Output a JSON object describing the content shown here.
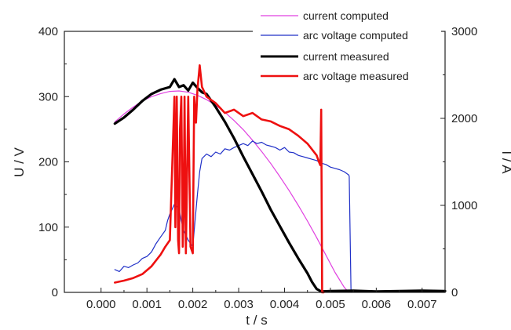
{
  "chart_data": {
    "type": "line",
    "title": "",
    "xlabel": "t / s",
    "ylabel_left": "U / V",
    "ylabel_right": "I / A",
    "xlim": [
      -0.0008,
      0.0075
    ],
    "ylim_left": [
      0,
      400
    ],
    "ylim_right": [
      0,
      3000
    ],
    "xticks": [
      "0.000",
      "0.001",
      "0.002",
      "0.003",
      "0.004",
      "0.005",
      "0.006",
      "0.007"
    ],
    "yticks_left": [
      "0",
      "100",
      "200",
      "300",
      "400"
    ],
    "yticks_right": [
      "0",
      "1000",
      "2000",
      "3000"
    ],
    "grid": false,
    "legend_position": "top-right",
    "series": [
      {
        "name": "current computed",
        "color": "#e040e0",
        "axis": "right",
        "width": 1.2,
        "x": [
          0.0003,
          0.0005,
          0.0007,
          0.0009,
          0.0011,
          0.0013,
          0.0015,
          0.0017,
          0.0019,
          0.0021,
          0.0023,
          0.0025,
          0.0027,
          0.0029,
          0.0031,
          0.0033,
          0.0035,
          0.0037,
          0.0039,
          0.0041,
          0.0043,
          0.0045,
          0.0047,
          0.0049,
          0.0051,
          0.0053,
          0.0054
        ],
        "y": [
          1960,
          2050,
          2130,
          2200,
          2250,
          2285,
          2310,
          2315,
          2300,
          2265,
          2215,
          2150,
          2070,
          1975,
          1870,
          1750,
          1620,
          1480,
          1330,
          1170,
          1000,
          820,
          630,
          430,
          230,
          60,
          0
        ]
      },
      {
        "name": "arc voltage computed",
        "color": "#2030c8",
        "axis": "left",
        "width": 1.2,
        "x": [
          0.0003,
          0.0004,
          0.0005,
          0.0006,
          0.0007,
          0.0008,
          0.0009,
          0.001,
          0.0011,
          0.0012,
          0.0013,
          0.0014,
          0.00145,
          0.0015,
          0.0016,
          0.0017,
          0.00175,
          0.0018,
          0.0019,
          0.002,
          0.00205,
          0.0021,
          0.00215,
          0.0022,
          0.0023,
          0.0024,
          0.0025,
          0.0026,
          0.0027,
          0.0028,
          0.0029,
          0.003,
          0.0031,
          0.0032,
          0.0033,
          0.0034,
          0.0035,
          0.0036,
          0.0037,
          0.0038,
          0.0039,
          0.004,
          0.0041,
          0.0042,
          0.0043,
          0.0044,
          0.0045,
          0.0046,
          0.0047,
          0.0048,
          0.0049,
          0.005,
          0.0051,
          0.0052,
          0.0053,
          0.0054,
          0.00541,
          0.00545
        ],
        "y": [
          35,
          32,
          40,
          38,
          42,
          45,
          52,
          55,
          62,
          75,
          85,
          95,
          110,
          120,
          135,
          128,
          110,
          95,
          80,
          70,
          110,
          150,
          185,
          205,
          212,
          208,
          215,
          212,
          220,
          218,
          222,
          225,
          228,
          225,
          232,
          228,
          230,
          226,
          224,
          222,
          218,
          222,
          215,
          214,
          210,
          208,
          206,
          204,
          202,
          198,
          196,
          192,
          190,
          188,
          185,
          180,
          178,
          0
        ]
      },
      {
        "name": "current measured",
        "color": "#000000",
        "axis": "right",
        "width": 3.2,
        "x": [
          0.0003,
          0.0005,
          0.0007,
          0.0009,
          0.0011,
          0.0013,
          0.0015,
          0.0016,
          0.0017,
          0.0018,
          0.0019,
          0.002,
          0.0021,
          0.0022,
          0.0023,
          0.0025,
          0.0027,
          0.0029,
          0.0031,
          0.0033,
          0.0035,
          0.0037,
          0.0039,
          0.0041,
          0.0043,
          0.0045,
          0.0046,
          0.0047,
          0.0048,
          0.005,
          0.0055,
          0.006,
          0.0065,
          0.007,
          0.0075
        ],
        "y": [
          1940,
          2010,
          2100,
          2200,
          2280,
          2330,
          2360,
          2450,
          2360,
          2380,
          2320,
          2410,
          2350,
          2300,
          2280,
          2130,
          1960,
          1770,
          1560,
          1360,
          1160,
          950,
          760,
          570,
          390,
          220,
          120,
          40,
          10,
          15,
          20,
          10,
          15,
          20,
          15
        ]
      },
      {
        "name": "arc voltage measured",
        "color": "#ee1010",
        "axis": "left",
        "width": 2.6,
        "x": [
          0.0003,
          0.0005,
          0.0007,
          0.0009,
          0.0011,
          0.0013,
          0.0014,
          0.0015,
          0.0016,
          0.00162,
          0.00165,
          0.00168,
          0.0017,
          0.00172,
          0.00175,
          0.00178,
          0.0018,
          0.00182,
          0.00185,
          0.00188,
          0.0019,
          0.00195,
          0.002,
          0.00203,
          0.00207,
          0.0021,
          0.00215,
          0.0022,
          0.0023,
          0.0025,
          0.0027,
          0.0029,
          0.0031,
          0.0033,
          0.0035,
          0.0037,
          0.0039,
          0.0041,
          0.0043,
          0.0045,
          0.0047,
          0.00475,
          0.00478,
          0.0048,
          0.00482,
          0.00485
        ],
        "y": [
          15,
          18,
          22,
          28,
          40,
          58,
          70,
          80,
          300,
          100,
          300,
          80,
          60,
          250,
          300,
          70,
          120,
          300,
          60,
          200,
          300,
          70,
          60,
          300,
          260,
          310,
          348,
          315,
          300,
          290,
          275,
          280,
          270,
          275,
          265,
          262,
          255,
          250,
          240,
          228,
          210,
          200,
          195,
          280,
          0,
          0
        ]
      }
    ]
  }
}
